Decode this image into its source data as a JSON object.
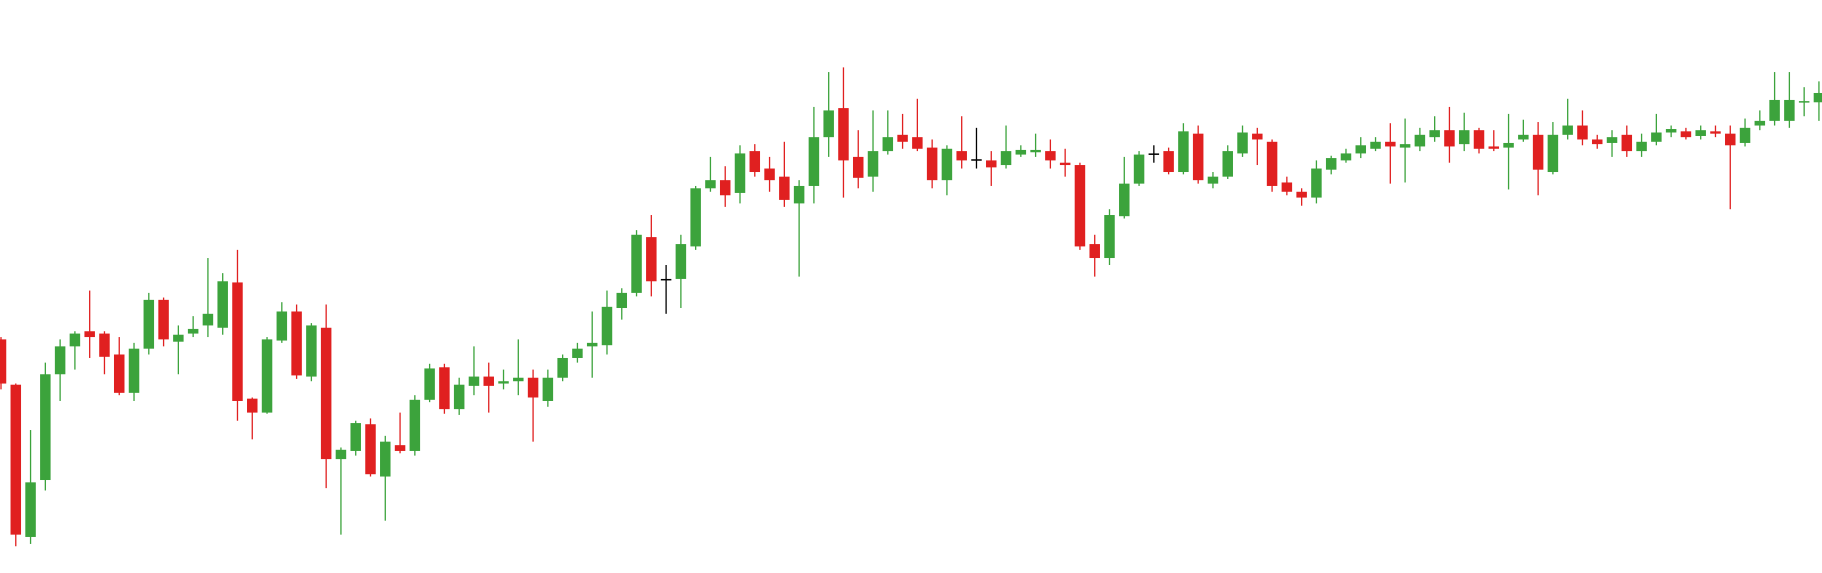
{
  "chart_data": {
    "type": "candlestick",
    "open": [
      201,
      162,
      31,
      80,
      171,
      195,
      208,
      206,
      188,
      155,
      193,
      235,
      199,
      206,
      213,
      211,
      250,
      150,
      138,
      200,
      225,
      169,
      211,
      98,
      105,
      128,
      83,
      110,
      105,
      149,
      177,
      141,
      161,
      169,
      163,
      165,
      168,
      148,
      168,
      185,
      195,
      196,
      228,
      241,
      289,
      253,
      253,
      281,
      331,
      338,
      327,
      363,
      348,
      341,
      318,
      333,
      375,
      400,
      358,
      341,
      363,
      377,
      375,
      366,
      338,
      363,
      356,
      355,
      351,
      360,
      362,
      363,
      353,
      351,
      283,
      271,
      307,
      335,
      361,
      363,
      345,
      378,
      335,
      341,
      361,
      378,
      371,
      336,
      328,
      323,
      347,
      355,
      361,
      365,
      371,
      366,
      367,
      375,
      381,
      369,
      381,
      367,
      366,
      373,
      377,
      345,
      377,
      385,
      373,
      370,
      377,
      363,
      371,
      379,
      380,
      376,
      380,
      378,
      370,
      385,
      389,
      389,
      405,
      405
    ],
    "high": [
      203,
      163,
      123,
      181,
      201,
      208,
      243,
      208,
      203,
      198,
      241,
      237,
      213,
      221,
      271,
      258,
      278,
      151,
      203,
      233,
      231,
      215,
      231,
      108,
      131,
      133,
      118,
      138,
      153,
      180,
      180,
      168,
      195,
      181,
      175,
      201,
      175,
      175,
      188,
      198,
      225,
      243,
      245,
      295,
      308,
      265,
      291,
      333,
      358,
      350,
      368,
      369,
      358,
      371,
      338,
      401,
      431,
      435,
      381,
      398,
      398,
      395,
      408,
      373,
      368,
      393,
      383,
      363,
      385,
      368,
      378,
      373,
      365,
      353,
      291,
      313,
      358,
      363,
      368,
      366,
      387,
      385,
      345,
      368,
      385,
      383,
      373,
      341,
      331,
      355,
      359,
      365,
      375,
      375,
      387,
      391,
      383,
      393,
      401,
      396,
      383,
      381,
      395,
      390,
      388,
      388,
      408,
      398,
      377,
      381,
      385,
      378,
      395,
      385,
      383,
      385,
      385,
      385,
      391,
      398,
      431,
      431,
      418,
      423
    ],
    "low": [
      158,
      23,
      25,
      71,
      148,
      175,
      185,
      171,
      153,
      148,
      188,
      195,
      171,
      203,
      203,
      205,
      131,
      115,
      137,
      198,
      167,
      165,
      73,
      33,
      101,
      83,
      45,
      103,
      101,
      147,
      137,
      136,
      153,
      138,
      158,
      153,
      113,
      143,
      165,
      181,
      168,
      188,
      218,
      238,
      238,
      223,
      228,
      278,
      328,
      315,
      318,
      341,
      328,
      315,
      255,
      318,
      358,
      323,
      331,
      328,
      360,
      365,
      363,
      331,
      325,
      348,
      348,
      333,
      348,
      358,
      358,
      348,
      341,
      278,
      255,
      265,
      305,
      333,
      353,
      343,
      343,
      335,
      331,
      339,
      358,
      351,
      328,
      325,
      316,
      318,
      343,
      353,
      357,
      363,
      335,
      336,
      363,
      371,
      353,
      363,
      361,
      363,
      330,
      371,
      325,
      343,
      373,
      368,
      365,
      358,
      358,
      358,
      368,
      375,
      373,
      373,
      375,
      313,
      367,
      381,
      385,
      383,
      393,
      389
    ],
    "close": [
      163,
      33,
      78,
      171,
      195,
      206,
      203,
      186,
      155,
      193,
      235,
      201,
      205,
      210,
      223,
      251,
      148,
      138,
      201,
      225,
      170,
      213,
      98,
      106,
      129,
      85,
      113,
      105,
      149,
      176,
      141,
      162,
      169,
      161,
      165,
      168,
      151,
      168,
      185,
      193,
      198,
      229,
      241,
      291,
      251,
      253,
      283,
      331,
      338,
      325,
      361,
      345,
      338,
      321,
      333,
      375,
      398,
      355,
      340,
      363,
      375,
      371,
      365,
      338,
      365,
      355,
      356,
      349,
      363,
      364,
      364,
      355,
      351,
      281,
      271,
      308,
      335,
      360,
      361,
      345,
      380,
      338,
      341,
      363,
      379,
      373,
      333,
      328,
      323,
      348,
      357,
      361,
      368,
      371,
      367,
      369,
      377,
      381,
      367,
      381,
      365,
      365,
      370,
      377,
      347,
      377,
      385,
      373,
      369,
      375,
      363,
      371,
      379,
      382,
      375,
      381,
      378,
      368,
      383,
      389,
      407,
      407,
      406,
      413
    ],
    "ylim": [
      0,
      493
    ],
    "up_color": "#3ca33c",
    "down_color": "#e02020",
    "doji_color": "#000000"
  }
}
